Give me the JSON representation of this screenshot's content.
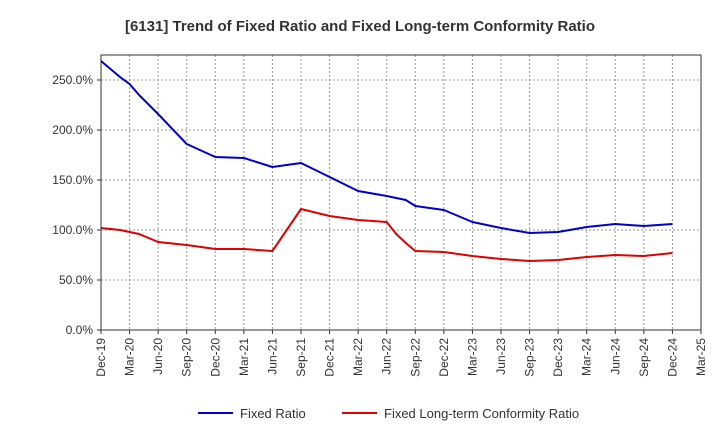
{
  "chart_data": {
    "type": "line",
    "title": "[6131]  Trend of Fixed Ratio and Fixed Long-term Conformity Ratio",
    "xlabel": "",
    "ylabel": "",
    "x_ticks": [
      "Dec-19",
      "Mar-20",
      "Jun-20",
      "Sep-20",
      "Dec-20",
      "Mar-21",
      "Jun-21",
      "Sep-21",
      "Dec-21",
      "Mar-22",
      "Jun-22",
      "Sep-22",
      "Dec-22",
      "Mar-23",
      "Jun-23",
      "Sep-23",
      "Dec-23",
      "Mar-24",
      "Jun-24",
      "Sep-24",
      "Dec-24",
      "Mar-25"
    ],
    "y_ticks": [
      "0.0%",
      "50.0%",
      "100.0%",
      "150.0%",
      "200.0%",
      "250.0%"
    ],
    "ylim": [
      0,
      275
    ],
    "grid": true,
    "legend": "bottom",
    "x": [
      "Dec-19",
      "Jan-20",
      "Feb-20",
      "Mar-20",
      "Apr-20",
      "Jun-20",
      "Sep-20",
      "Dec-20",
      "Mar-21",
      "Jun-21",
      "Sep-21",
      "Dec-21",
      "Mar-22",
      "Jun-22",
      "Jul-22",
      "Aug-22",
      "Sep-22",
      "Dec-22",
      "Mar-23",
      "Jun-23",
      "Sep-23",
      "Dec-23",
      "Mar-24",
      "Jun-24",
      "Sep-24",
      "Dec-24"
    ],
    "series": [
      {
        "name": "Fixed Ratio",
        "color": "#0000cc",
        "values": [
          269,
          261,
          253,
          246,
          235,
          216,
          186,
          173,
          172,
          163,
          167,
          153,
          139,
          134,
          132,
          130,
          124,
          120,
          108,
          102,
          97,
          98,
          103,
          106,
          104,
          106
        ]
      },
      {
        "name": "Fixed Long-term Conformity Ratio",
        "color": "#dd0000",
        "values": [
          102,
          101,
          100,
          98,
          96,
          88,
          85,
          81,
          81,
          79,
          121,
          114,
          110,
          108,
          96,
          87,
          79,
          78,
          74,
          71,
          69,
          70,
          73,
          75,
          74,
          77
        ]
      }
    ]
  }
}
